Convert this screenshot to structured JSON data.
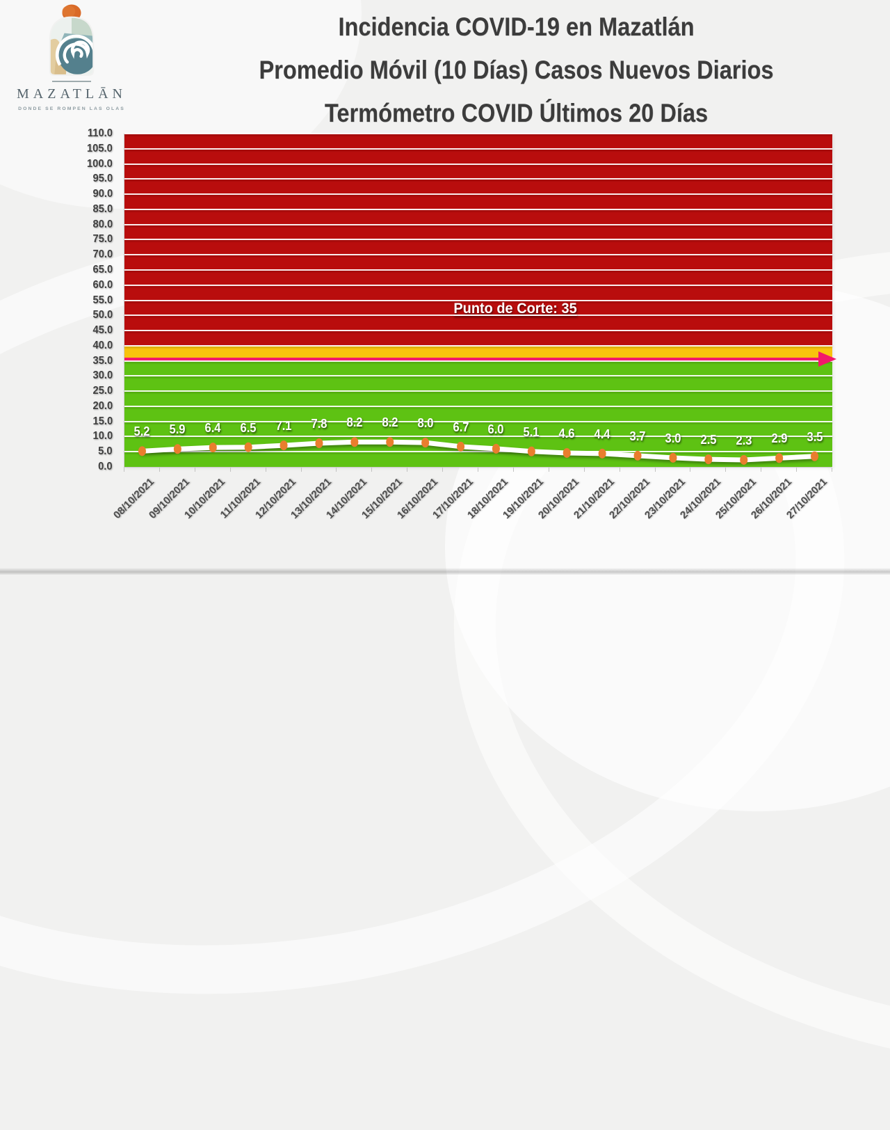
{
  "logo": {
    "brand": "MAZATLĀN",
    "tagline": "DONDE SE ROMPEN LAS OLAS"
  },
  "title": {
    "line1": "Incidencia COVID-19 en Mazatlán",
    "line2": "Promedio Móvil (10 Días) Casos Nuevos Diarios",
    "line3": "Termómetro COVID Últimos 20 Días"
  },
  "colors": {
    "zone_red": "#B90D0D",
    "zone_yellow": "#F8C30D",
    "cutoff_magenta": "#F2186B",
    "zone_green": "#5EC213",
    "series_line": "#FFFFFF",
    "marker_orange": "#E97E2E",
    "title_text": "#3C3C3C",
    "axis_text": "#4E4E4E"
  },
  "chart_data": {
    "type": "line",
    "title": "Termómetro COVID Últimos 20 Días",
    "xlabel": "",
    "ylabel": "",
    "ylim": [
      0,
      110
    ],
    "ytick_step": 5,
    "ytick_format_decimals": 1,
    "grid": true,
    "legend": false,
    "x": [
      "08/10/2021",
      "09/10/2021",
      "10/10/2021",
      "11/10/2021",
      "12/10/2021",
      "13/10/2021",
      "14/10/2021",
      "15/10/2021",
      "16/10/2021",
      "17/10/2021",
      "18/10/2021",
      "19/10/2021",
      "20/10/2021",
      "21/10/2021",
      "22/10/2021",
      "23/10/2021",
      "24/10/2021",
      "25/10/2021",
      "26/10/2021",
      "27/10/2021"
    ],
    "series": [
      {
        "name": "Promedio móvil 10 días",
        "values": [
          5.2,
          5.9,
          6.4,
          6.5,
          7.1,
          7.8,
          8.2,
          8.2,
          8.0,
          6.7,
          6.0,
          5.1,
          4.6,
          4.4,
          3.7,
          3.0,
          2.5,
          2.3,
          2.9,
          3.5
        ]
      }
    ],
    "cutoff": {
      "label": "Punto de Corte: 35",
      "value": 35,
      "label_y_value": 52
    },
    "zones": [
      {
        "name": "red",
        "from": 40,
        "to": 110,
        "color": "#B90D0D"
      },
      {
        "name": "yellow",
        "from": 36,
        "to": 40,
        "color": "#F8C30D"
      },
      {
        "name": "cutoff-band",
        "from": 35,
        "to": 36,
        "color": "#F2186B"
      },
      {
        "name": "green",
        "from": 0,
        "to": 35,
        "color": "#5EC213"
      }
    ]
  }
}
